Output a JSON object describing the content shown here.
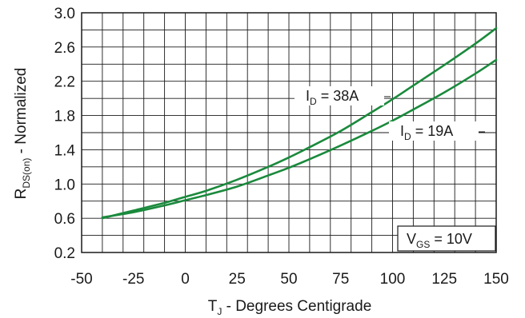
{
  "chart_data": {
    "type": "line",
    "xlabel": {
      "main": "T",
      "sub": "J",
      "rest": " - Degrees Centigrade"
    },
    "ylabel": {
      "main": "R",
      "sub": "DS(on)",
      "rest": " - Normalized"
    },
    "xlim": [
      -50,
      150
    ],
    "ylim": [
      0.2,
      3.0
    ],
    "x_ticks": [
      -50,
      -25,
      0,
      25,
      50,
      75,
      100,
      125,
      150
    ],
    "x_tick_labels": [
      "-50",
      "-25",
      "0",
      "25",
      "50",
      "75",
      "100",
      "125",
      "150"
    ],
    "y_ticks": [
      0.2,
      0.6,
      1.0,
      1.4,
      1.8,
      2.2,
      2.6,
      3.0
    ],
    "y_tick_labels": [
      "0.2",
      "0.6",
      "1.0",
      "1.4",
      "1.8",
      "2.2",
      "2.6",
      "3.0"
    ],
    "x_minor_step": 10,
    "y_minor_step": 0.2,
    "grid": true,
    "line_color": "#1a8a3c",
    "series": [
      {
        "name": "I_D = 38A",
        "label": {
          "main": "I",
          "sub": "D",
          "rest": " = 38A"
        },
        "x": [
          -40,
          -25,
          -10,
          0,
          10,
          25,
          40,
          50,
          60,
          75,
          90,
          100,
          110,
          125,
          140,
          150
        ],
        "y": [
          0.6,
          0.69,
          0.78,
          0.85,
          0.92,
          1.05,
          1.2,
          1.31,
          1.43,
          1.62,
          1.84,
          1.99,
          2.15,
          2.39,
          2.64,
          2.82
        ]
      },
      {
        "name": "I_D = 19A",
        "label": {
          "main": "I",
          "sub": "D",
          "rest": " = 19A"
        },
        "x": [
          -40,
          -25,
          -10,
          0,
          10,
          25,
          40,
          50,
          60,
          75,
          90,
          100,
          110,
          125,
          140,
          150
        ],
        "y": [
          0.61,
          0.67,
          0.75,
          0.81,
          0.87,
          0.97,
          1.1,
          1.19,
          1.29,
          1.45,
          1.62,
          1.74,
          1.87,
          2.07,
          2.29,
          2.45
        ]
      }
    ],
    "annotation": {
      "main": "V",
      "sub": "GS",
      "rest": " = 10V"
    }
  }
}
